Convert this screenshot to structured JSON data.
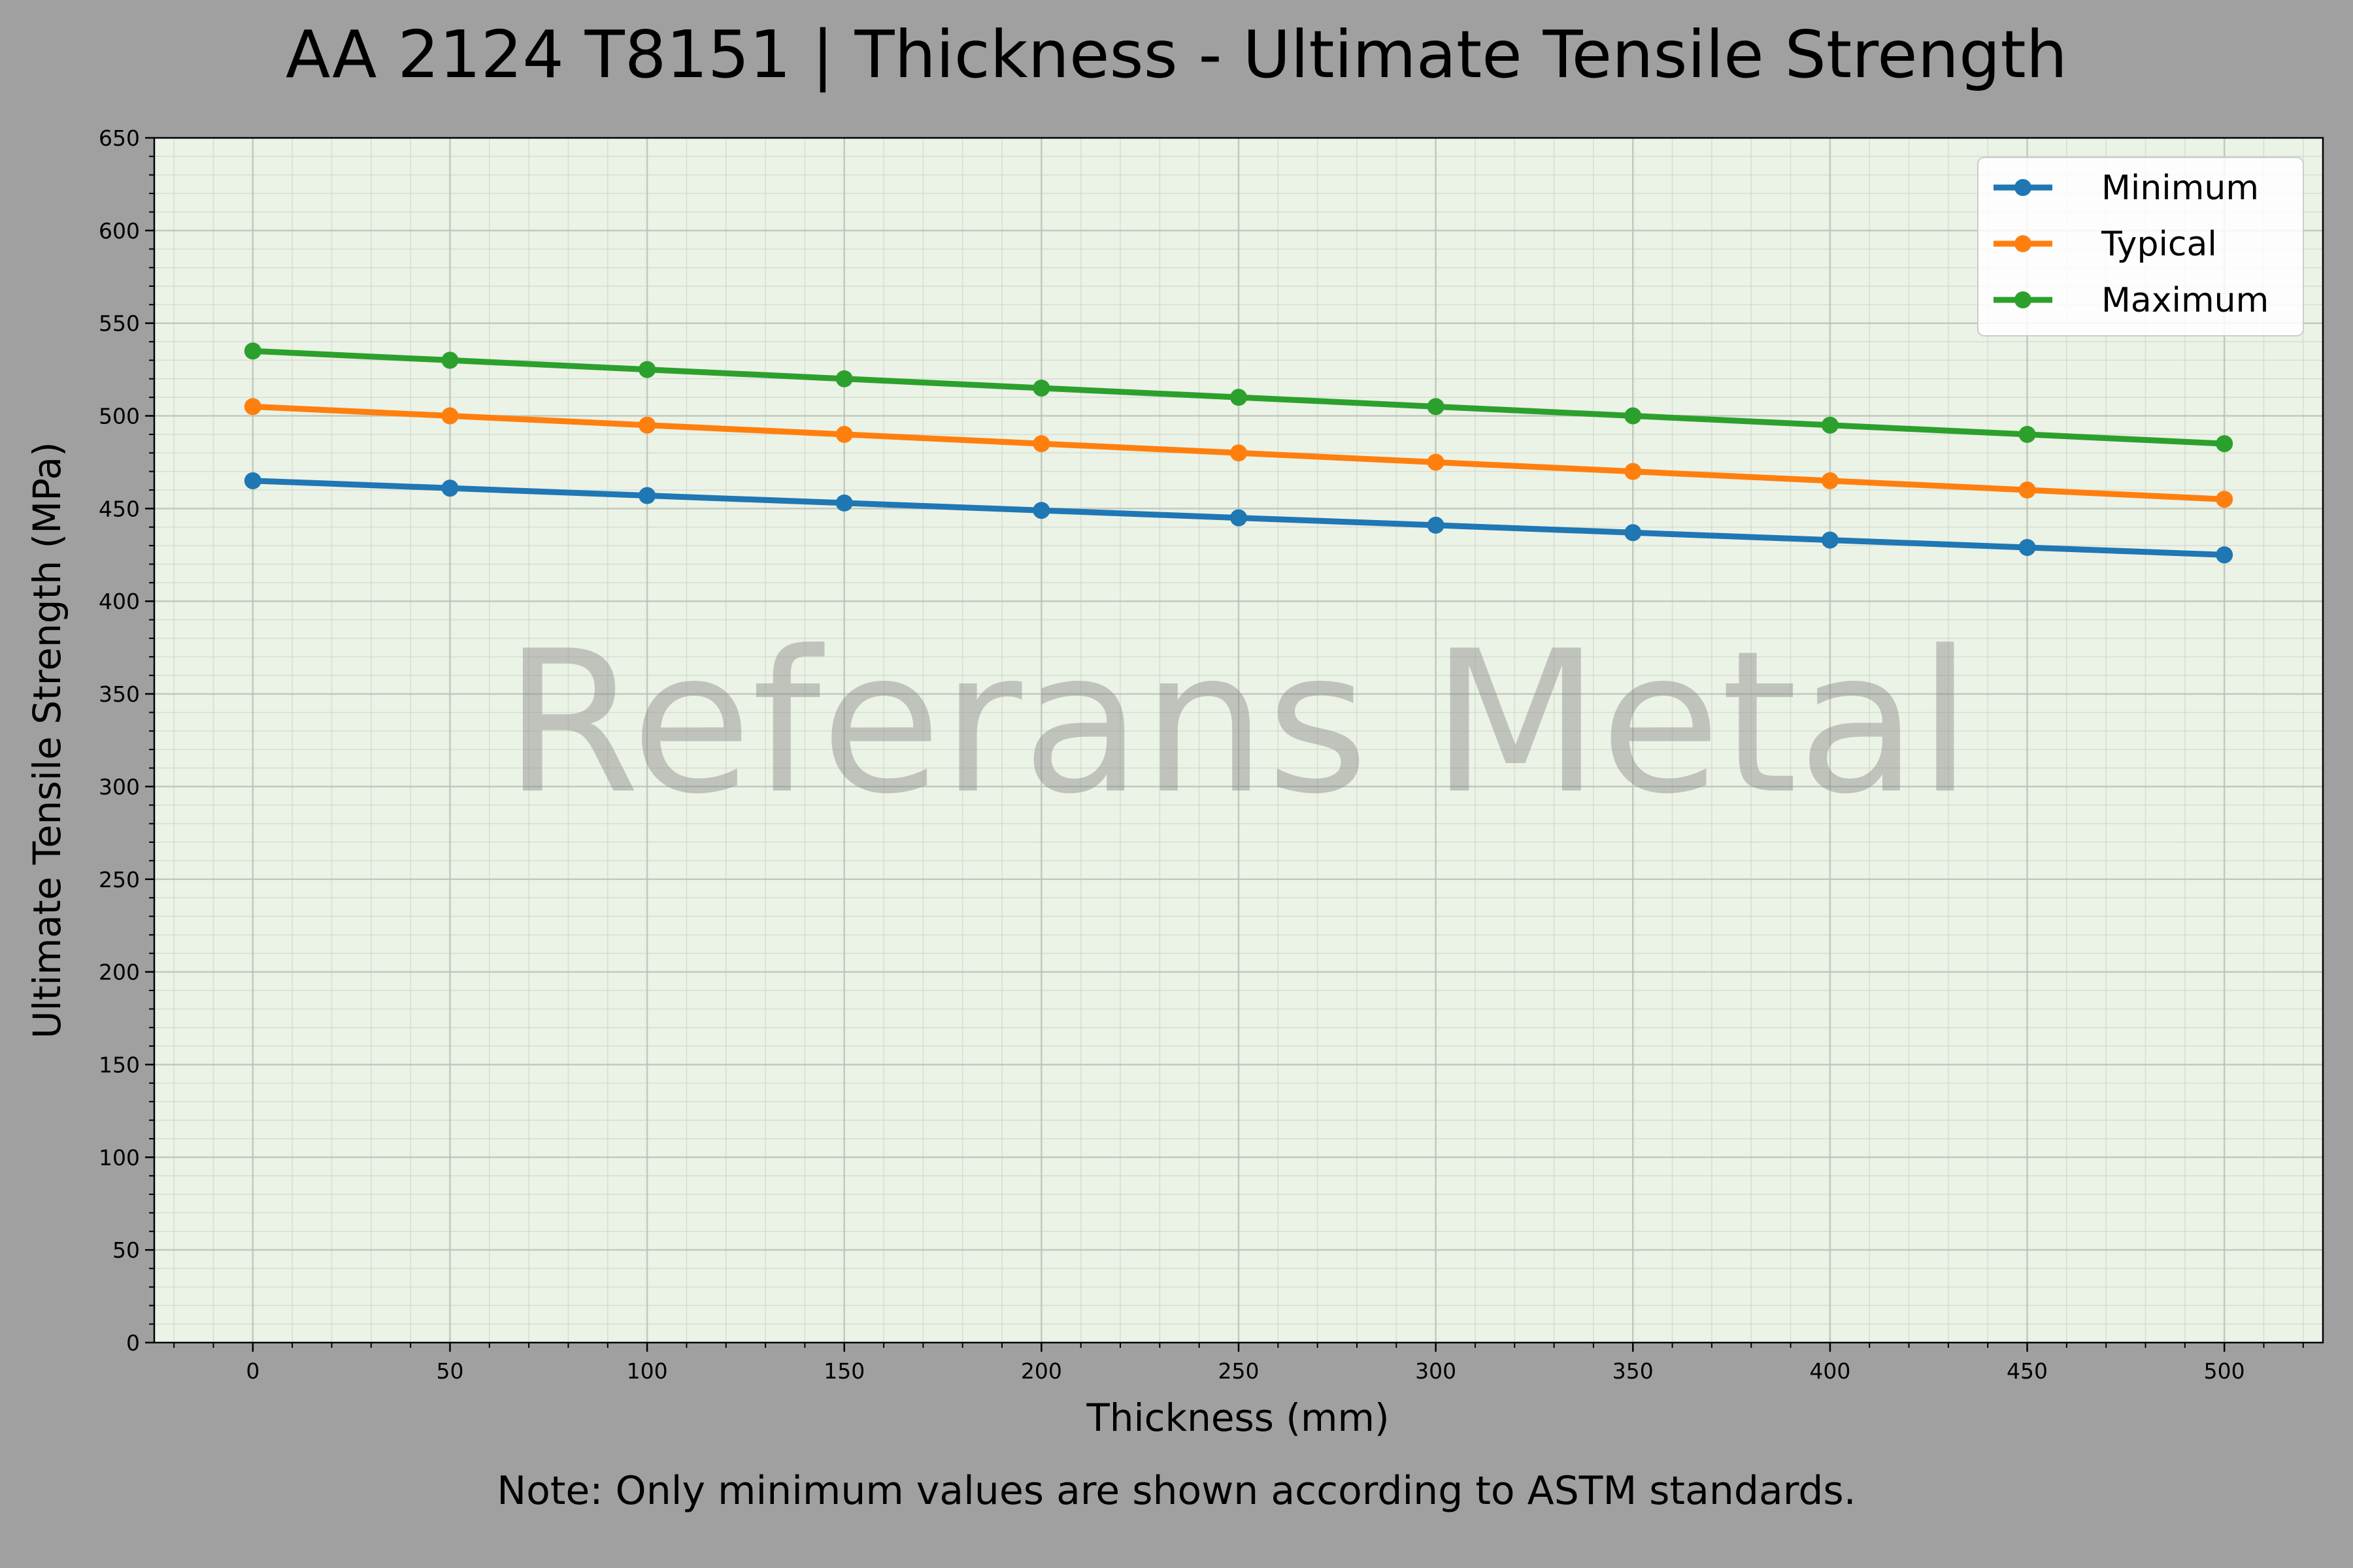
{
  "chart_data": {
    "type": "line",
    "title": "AA 2124 T8151 | Thickness - Ultimate Tensile Strength",
    "xlabel": "Thickness (mm)",
    "ylabel": "Ultimate Tensile Strength (MPa)",
    "note": "Note: Only minimum values are shown according to ASTM standards.",
    "watermark": "Referans Metal",
    "x": [
      0,
      50,
      100,
      150,
      200,
      250,
      300,
      350,
      400,
      450,
      500
    ],
    "xlim": [
      -25,
      525
    ],
    "ylim": [
      0,
      650
    ],
    "xticks": [
      0,
      50,
      100,
      150,
      200,
      250,
      300,
      350,
      400,
      450,
      500
    ],
    "yticks": [
      0,
      50,
      100,
      150,
      200,
      250,
      300,
      350,
      400,
      450,
      500,
      550,
      600,
      650
    ],
    "grid": true,
    "legend_position": "top-right",
    "series": [
      {
        "name": "Minimum",
        "color": "#1f77b4",
        "values": [
          465,
          461,
          457,
          453,
          449,
          445,
          441,
          437,
          433,
          429,
          425
        ]
      },
      {
        "name": "Typical",
        "color": "#ff7f0e",
        "values": [
          505,
          500,
          495,
          490,
          485,
          480,
          475,
          470,
          465,
          460,
          455
        ]
      },
      {
        "name": "Maximum",
        "color": "#2ca02c",
        "values": [
          535,
          530,
          525,
          520,
          515,
          510,
          505,
          500,
          495,
          490,
          485
        ]
      }
    ],
    "colors": {
      "figure_background": "#a0a0a0",
      "axes_background": "#ebf2e6"
    }
  }
}
